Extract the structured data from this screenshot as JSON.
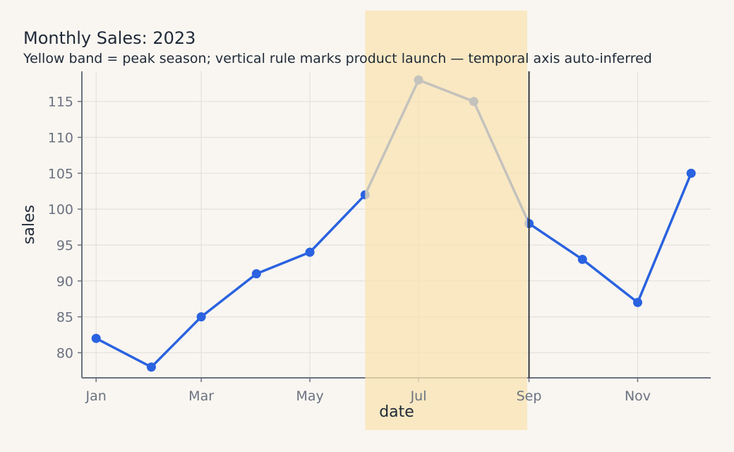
{
  "chart_data": {
    "type": "line",
    "title": "Monthly Sales: 2023",
    "subtitle": "Yellow band = peak season; vertical rule marks product launch — temporal axis auto-inferred",
    "xlabel": "date",
    "ylabel": "sales",
    "x": [
      "2023-01-01",
      "2023-02-01",
      "2023-03-01",
      "2023-04-01",
      "2023-05-01",
      "2023-06-01",
      "2023-07-01",
      "2023-08-01",
      "2023-09-01",
      "2023-10-01",
      "2023-11-01",
      "2023-12-01"
    ],
    "y": [
      82,
      78,
      85,
      91,
      94,
      102,
      118,
      115,
      98,
      93,
      87,
      105
    ],
    "x_ticks": [
      {
        "date": "2023-01-01",
        "label": "Jan"
      },
      {
        "date": "2023-03-01",
        "label": "Mar"
      },
      {
        "date": "2023-05-01",
        "label": "May"
      },
      {
        "date": "2023-07-01",
        "label": "Jul"
      },
      {
        "date": "2023-09-01",
        "label": "Sep"
      },
      {
        "date": "2023-11-01",
        "label": "Nov"
      }
    ],
    "y_ticks": [
      80,
      85,
      90,
      95,
      100,
      105,
      110,
      115
    ],
    "xlim": [
      "2022-12-24",
      "2023-12-12"
    ],
    "ylim": [
      76.5,
      119.2
    ],
    "band": {
      "start": "2023-06-01",
      "end": "2023-08-31",
      "label": "peak season",
      "color": "#f8e3b1"
    },
    "rule": {
      "date": "2023-09-01",
      "label": "product launch",
      "color": "#333333"
    },
    "line_color": "#2a62e0",
    "grid": true
  }
}
